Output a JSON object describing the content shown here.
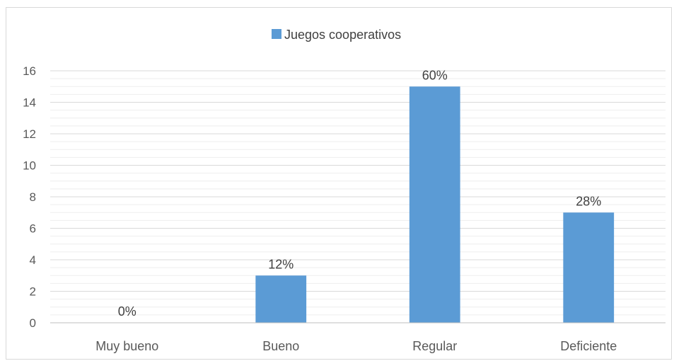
{
  "chart_data": {
    "type": "bar",
    "categories": [
      "Muy bueno",
      "Bueno",
      "Regular",
      "Deficiente"
    ],
    "series": [
      {
        "name": "Juegos cooperativos",
        "values": [
          0,
          3,
          15,
          7
        ],
        "data_labels": [
          "0%",
          "12%",
          "60%",
          "28%"
        ],
        "color": "#5b9bd5"
      }
    ],
    "title": "",
    "xlabel": "",
    "ylabel": "",
    "ylim": [
      0,
      16
    ],
    "yticks": [
      0,
      2,
      4,
      6,
      8,
      10,
      12,
      14,
      16
    ],
    "grid": true,
    "legend_position": "top"
  }
}
